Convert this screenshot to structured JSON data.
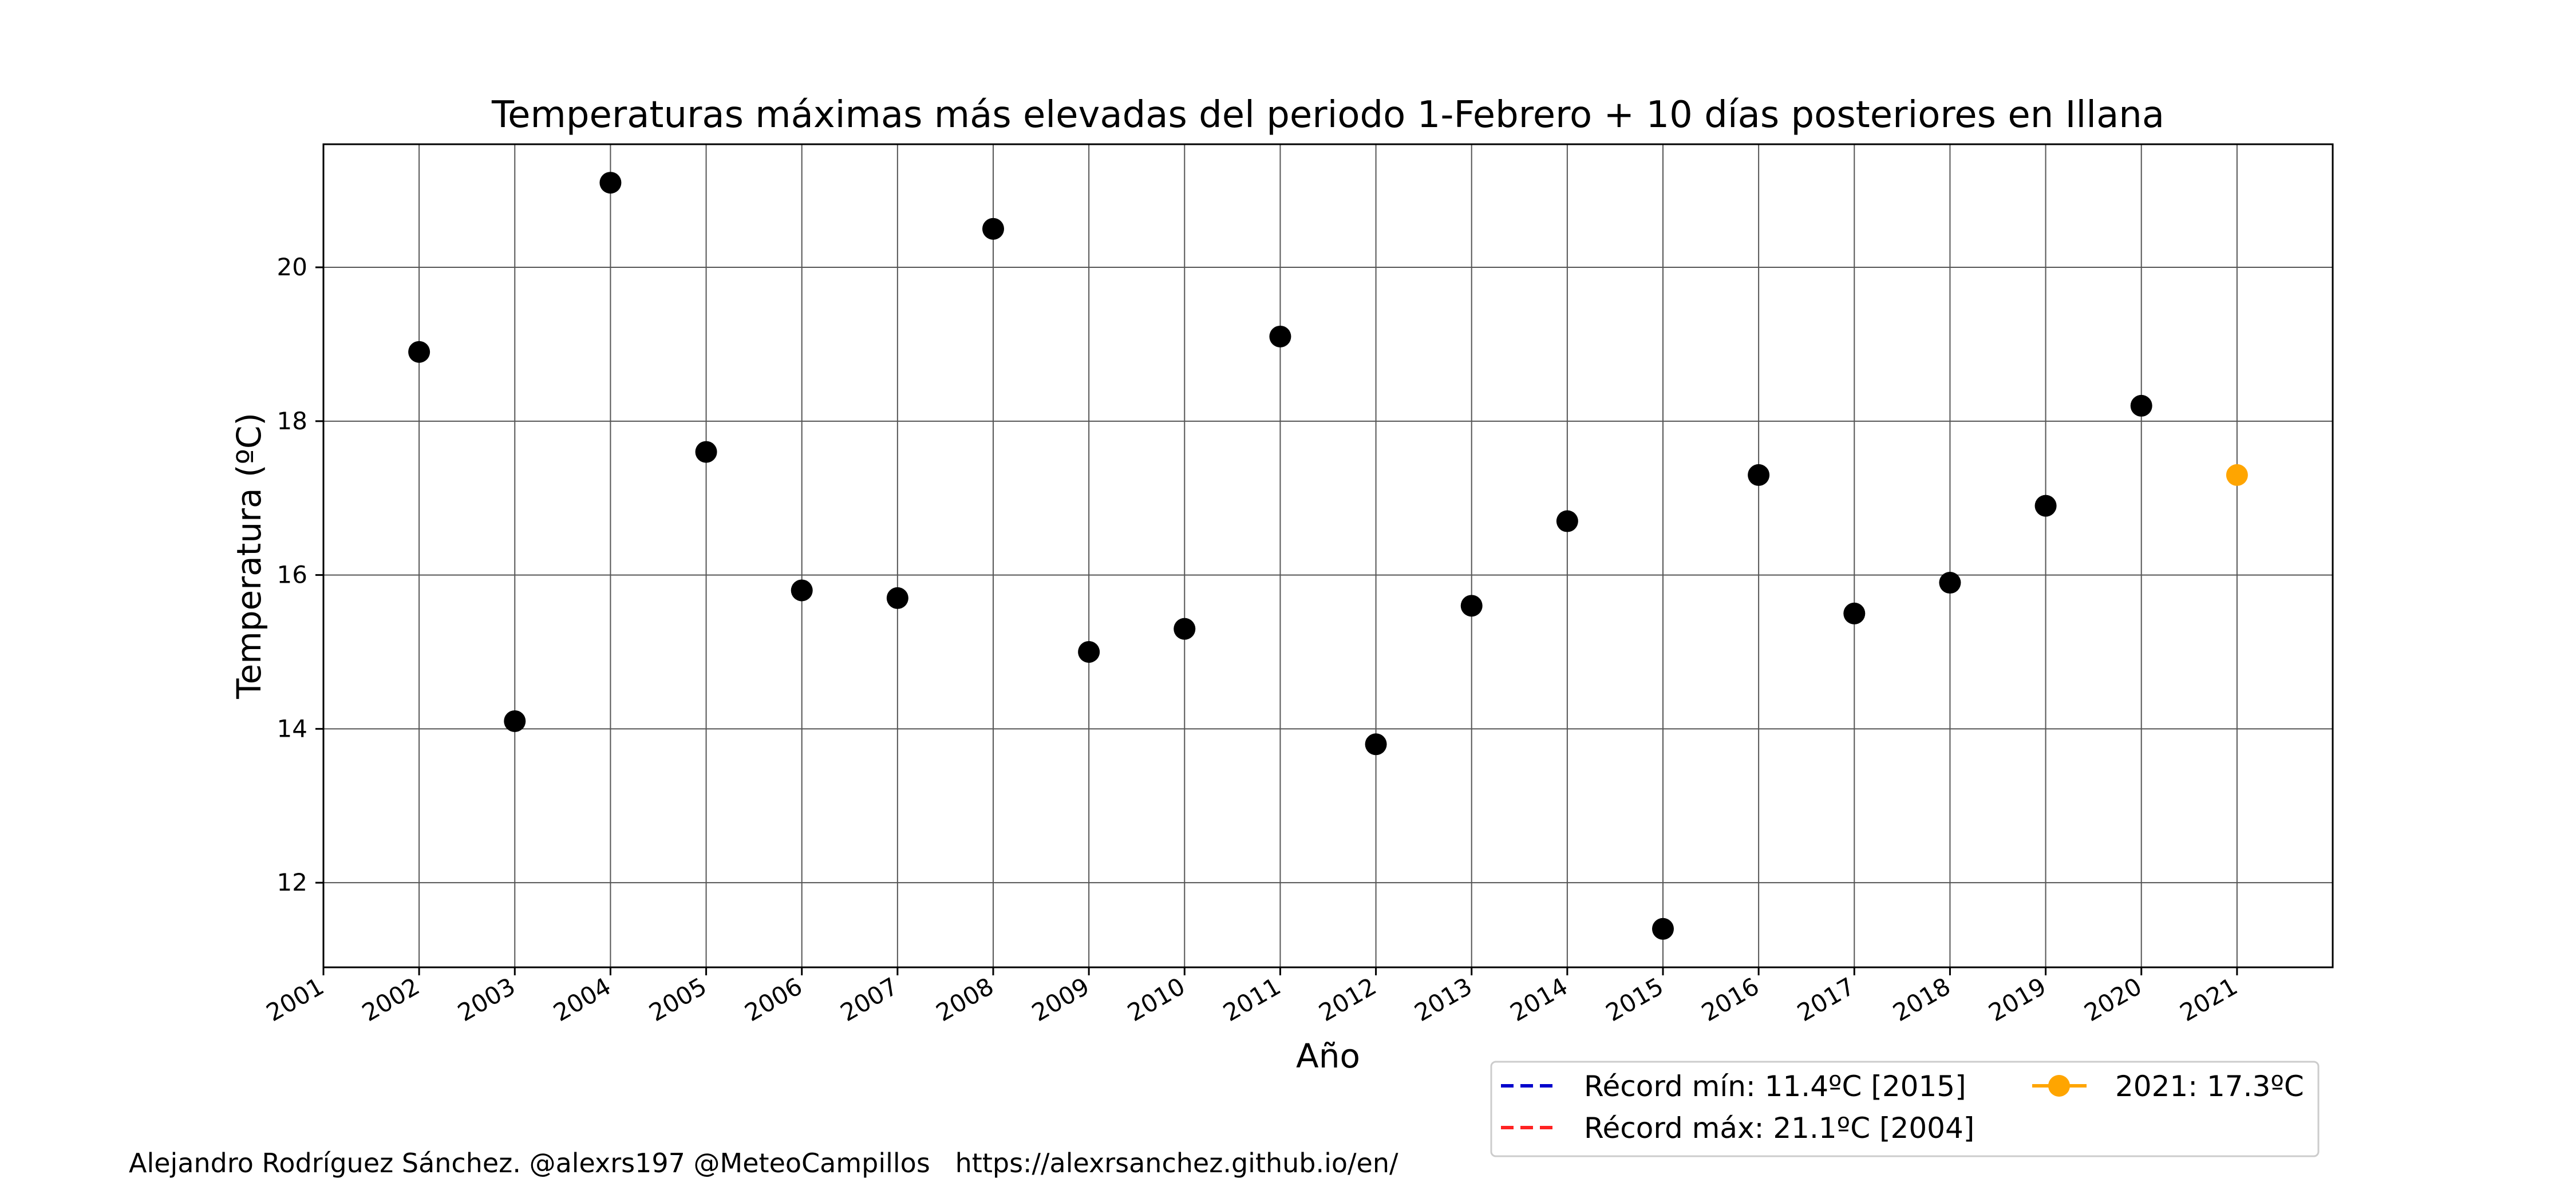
{
  "chart_data": {
    "type": "scatter",
    "title": "Temperaturas máximas más elevadas del periodo 1-Febrero + 10 días posteriores en Illana",
    "xlabel": "Año",
    "ylabel": "Temperatura (ºC)",
    "xlim": [
      2001,
      2022
    ],
    "ylim": [
      10.9,
      21.6
    ],
    "xticks": [
      "2001",
      "2002",
      "2003",
      "2004",
      "2005",
      "2006",
      "2007",
      "2008",
      "2009",
      "2010",
      "2011",
      "2012",
      "2013",
      "2014",
      "2015",
      "2016",
      "2017",
      "2018",
      "2019",
      "2020",
      "2021"
    ],
    "yticks": [
      12,
      14,
      16,
      18,
      20
    ],
    "grid": true,
    "series": [
      {
        "color": "#000000",
        "x": [
          2002,
          2003,
          2004,
          2005,
          2006,
          2007,
          2008,
          2009,
          2010,
          2011,
          2012,
          2013,
          2014,
          2015,
          2016,
          2017,
          2018,
          2019,
          2020
        ],
        "values": [
          18.9,
          14.1,
          21.1,
          17.6,
          15.8,
          15.7,
          20.5,
          15.0,
          15.3,
          19.1,
          13.8,
          15.6,
          16.7,
          11.4,
          17.3,
          15.5,
          15.9,
          16.9,
          18.2
        ]
      },
      {
        "name": "2021: 17.3ºC",
        "color": "#FFA500",
        "x": [
          2021
        ],
        "values": [
          17.3
        ]
      }
    ],
    "legend": {
      "placement": "bottom-right",
      "entries": [
        {
          "label": "Récord mín: 11.4ºC [2015]",
          "color": "#0000CC",
          "style": "dashed"
        },
        {
          "label": "Récord máx: 21.1ºC [2004]",
          "color": "#FF2222",
          "style": "dashed"
        },
        {
          "label": "2021: 17.3ºC",
          "color": "#FFA500",
          "style": "line-marker"
        }
      ]
    }
  },
  "footer": {
    "credit": "Alejandro Rodríguez Sánchez. @alexrs197 @MeteoCampillos   https://alexrsanchez.github.io/en/"
  }
}
